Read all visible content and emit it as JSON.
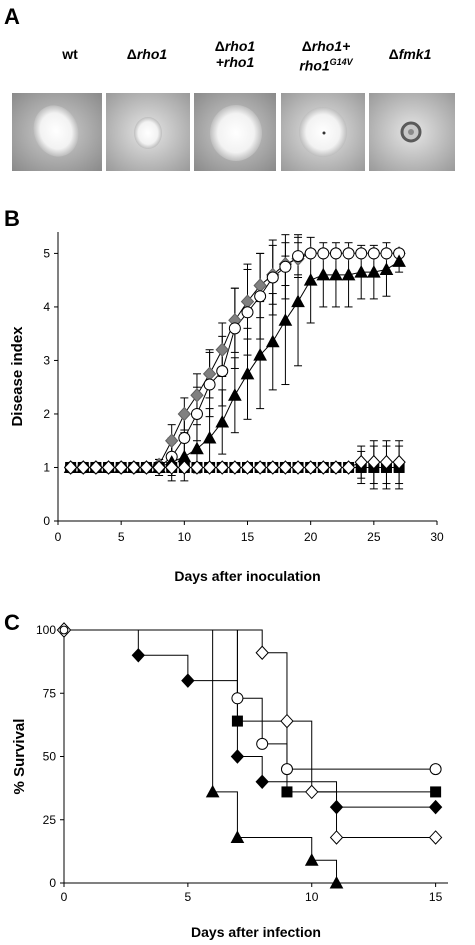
{
  "panel_a": {
    "letter": "A",
    "strains": [
      {
        "prefix": "",
        "main": "wt",
        "line2": "",
        "sup": ""
      },
      {
        "prefix": "Δ",
        "main": "rho1",
        "line2": "",
        "sup": ""
      },
      {
        "prefix": "Δ",
        "main": "rho1",
        "line2": "+rho1",
        "sup": ""
      },
      {
        "prefix": "Δ",
        "main": "rho1+",
        "line2": "rho1",
        "sup": "G14V"
      },
      {
        "prefix": "Δ",
        "main": "fmk1",
        "line2": "",
        "sup": ""
      }
    ]
  },
  "chart_data": [
    {
      "panel": "B",
      "type": "line",
      "xlabel": "Days after inoculation",
      "ylabel": "Disease index",
      "xlim": [
        0,
        30
      ],
      "ylim": [
        0,
        5.4
      ],
      "xticks": [
        "0",
        "5",
        "10",
        "15",
        "20",
        "25",
        "30"
      ],
      "yticks": [
        "0",
        "1",
        "2",
        "3",
        "4",
        "5"
      ],
      "series": [
        {
          "marker": "diamond",
          "fill": "#808080",
          "stroke": "#606060",
          "x": [
            1,
            2,
            3,
            4,
            5,
            6,
            7,
            8,
            9,
            10,
            11,
            12,
            13,
            14,
            15,
            16,
            17,
            18,
            19,
            20,
            21,
            22,
            23,
            24,
            25,
            26,
            27
          ],
          "y": [
            1,
            1,
            1,
            1,
            1,
            1,
            1,
            1.05,
            1.5,
            2.0,
            2.35,
            2.75,
            3.2,
            3.75,
            4.1,
            4.4,
            4.6,
            4.8,
            4.9,
            5,
            5,
            5,
            5,
            5,
            5,
            5,
            5
          ],
          "err": [
            0,
            0,
            0,
            0,
            0,
            0,
            0,
            0.1,
            0.3,
            0.3,
            0.4,
            0.45,
            0.5,
            0.6,
            0.7,
            0.6,
            0.55,
            0.4,
            0.3,
            0,
            0,
            0,
            0,
            0,
            0,
            0,
            0
          ]
        },
        {
          "marker": "circle",
          "fill": "#ffffff",
          "stroke": "#000000",
          "x": [
            1,
            2,
            3,
            4,
            5,
            6,
            7,
            8,
            9,
            10,
            11,
            12,
            13,
            14,
            15,
            16,
            17,
            18,
            19,
            20,
            21,
            22,
            23,
            24,
            25,
            26,
            27
          ],
          "y": [
            1,
            1,
            1,
            1,
            1,
            1,
            1,
            1.0,
            1.2,
            1.55,
            2.0,
            2.55,
            2.8,
            3.6,
            3.9,
            4.2,
            4.55,
            4.75,
            4.95,
            5,
            5,
            5,
            5,
            5,
            5,
            5,
            5
          ],
          "err": [
            0,
            0,
            0,
            0,
            0,
            0,
            0,
            0.15,
            0.35,
            0.45,
            0.5,
            0.6,
            0.65,
            0.75,
            0.8,
            0.8,
            0.7,
            0.6,
            0.4,
            0,
            0,
            0,
            0,
            0,
            0,
            0,
            0
          ]
        },
        {
          "marker": "triangle",
          "fill": "#000000",
          "stroke": "#000000",
          "x": [
            1,
            2,
            3,
            4,
            5,
            6,
            7,
            8,
            9,
            10,
            11,
            12,
            13,
            14,
            15,
            16,
            17,
            18,
            19,
            20,
            21,
            22,
            23,
            24,
            25,
            26,
            27
          ],
          "y": [
            1,
            1,
            1,
            1,
            1,
            1,
            1,
            1.0,
            1.1,
            1.2,
            1.35,
            1.55,
            1.85,
            2.35,
            2.75,
            3.1,
            3.35,
            3.75,
            4.1,
            4.5,
            4.6,
            4.6,
            4.6,
            4.65,
            4.65,
            4.7,
            4.85
          ],
          "err": [
            0,
            0,
            0,
            0,
            0,
            0,
            0,
            0.15,
            0.35,
            0.45,
            0.45,
            0.55,
            0.6,
            0.7,
            0.85,
            1.0,
            0.9,
            1.2,
            1.2,
            0.8,
            0.6,
            0.6,
            0.6,
            0.5,
            0.5,
            0.5,
            0.2
          ]
        },
        {
          "marker": "square",
          "fill": "#000000",
          "stroke": "#000000",
          "x": [
            1,
            2,
            3,
            4,
            5,
            6,
            7,
            8,
            9,
            10,
            11,
            12,
            13,
            14,
            15,
            16,
            17,
            18,
            19,
            20,
            21,
            22,
            23,
            24,
            25,
            26,
            27
          ],
          "y": [
            1,
            1,
            1,
            1,
            1,
            1,
            1,
            1,
            1,
            1,
            1,
            1,
            1,
            1,
            1,
            1,
            1,
            1,
            1,
            1,
            1,
            1,
            1,
            1,
            1,
            1,
            1
          ],
          "err": [
            0,
            0,
            0,
            0,
            0,
            0,
            0,
            0,
            0,
            0,
            0,
            0,
            0,
            0,
            0,
            0,
            0,
            0,
            0,
            0,
            0,
            0,
            0,
            0.3,
            0.4,
            0.4,
            0.4
          ]
        },
        {
          "marker": "diamond",
          "fill": "#ffffff",
          "stroke": "#000000",
          "x": [
            1,
            2,
            3,
            4,
            5,
            6,
            7,
            8,
            9,
            10,
            11,
            12,
            13,
            14,
            15,
            16,
            17,
            18,
            19,
            20,
            21,
            22,
            23,
            24,
            25,
            26,
            27
          ],
          "y": [
            1,
            1,
            1,
            1,
            1,
            1,
            1,
            1,
            1,
            1,
            1,
            1,
            1,
            1,
            1,
            1,
            1,
            1,
            1,
            1,
            1,
            1,
            1,
            1.1,
            1.1,
            1.1,
            1.1
          ],
          "err": [
            0,
            0,
            0,
            0,
            0,
            0,
            0,
            0,
            0,
            0,
            0,
            0,
            0,
            0,
            0,
            0,
            0,
            0,
            0,
            0,
            0,
            0,
            0,
            0.3,
            0.4,
            0.4,
            0.4
          ]
        }
      ]
    },
    {
      "panel": "C",
      "type": "line",
      "xlabel": "Days after infection",
      "ylabel": "% Survival",
      "xlim": [
        0,
        15.5
      ],
      "ylim": [
        0,
        100
      ],
      "xticks": [
        "0",
        "5",
        "10",
        "15"
      ],
      "yticks": [
        "0",
        "25",
        "50",
        "75",
        "100"
      ],
      "series": [
        {
          "marker": "diamond",
          "fill": "#000000",
          "stroke": "#000000",
          "steps": [
            [
              0,
              100
            ],
            [
              3,
              90
            ],
            [
              5,
              80
            ],
            [
              7,
              50
            ],
            [
              8,
              40
            ],
            [
              11,
              30
            ],
            [
              15,
              30
            ]
          ],
          "points": [
            [
              3,
              90
            ],
            [
              5,
              80
            ],
            [
              7,
              50
            ],
            [
              8,
              40
            ],
            [
              11,
              30
            ],
            [
              15,
              30
            ]
          ]
        },
        {
          "marker": "triangle",
          "fill": "#000000",
          "stroke": "#000000",
          "steps": [
            [
              0,
              100
            ],
            [
              6,
              36
            ],
            [
              7,
              18
            ],
            [
              10,
              9
            ],
            [
              11,
              0
            ]
          ],
          "points": [
            [
              6,
              36
            ],
            [
              7,
              18
            ],
            [
              10,
              9
            ],
            [
              11,
              0
            ]
          ]
        },
        {
          "marker": "circle",
          "fill": "#ffffff",
          "stroke": "#000000",
          "steps": [
            [
              0,
              100
            ],
            [
              7,
              73
            ],
            [
              8,
              55
            ],
            [
              9,
              45
            ],
            [
              15,
              45
            ]
          ],
          "points": [
            [
              7,
              73
            ],
            [
              8,
              55
            ],
            [
              9,
              45
            ],
            [
              15,
              45
            ]
          ]
        },
        {
          "marker": "square",
          "fill": "#000000",
          "stroke": "#000000",
          "steps": [
            [
              0,
              100
            ],
            [
              7,
              64
            ],
            [
              9,
              36
            ],
            [
              15,
              36
            ]
          ],
          "points": [
            [
              7,
              64
            ],
            [
              9,
              36
            ],
            [
              15,
              36
            ]
          ]
        },
        {
          "marker": "diamond",
          "fill": "#ffffff",
          "stroke": "#000000",
          "steps": [
            [
              0,
              100
            ],
            [
              8,
              91
            ],
            [
              9,
              64
            ],
            [
              10,
              36
            ],
            [
              11,
              18
            ],
            [
              15,
              18
            ]
          ],
          "points": [
            [
              8,
              91
            ],
            [
              9,
              64
            ],
            [
              10,
              36
            ],
            [
              11,
              18
            ],
            [
              15,
              18
            ]
          ]
        }
      ],
      "start_marker": [
        0,
        100
      ]
    }
  ],
  "panel_b": {
    "letter": "B"
  },
  "panel_c": {
    "letter": "C"
  }
}
